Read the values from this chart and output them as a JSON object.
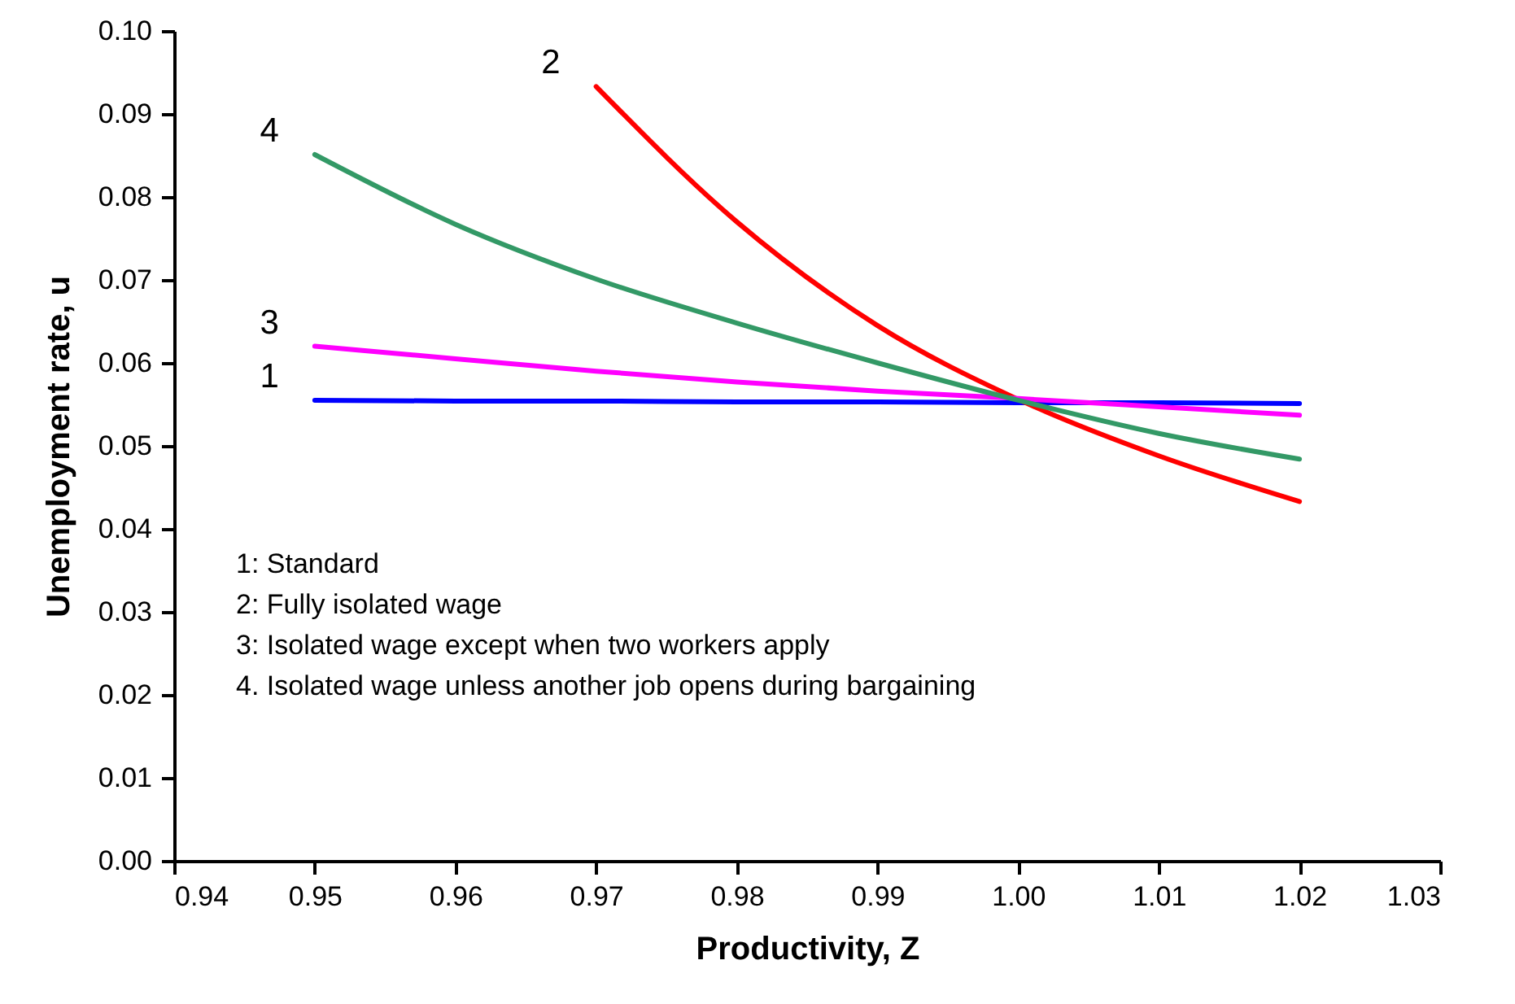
{
  "chart_data": {
    "type": "line",
    "xlabel": "Productivity, Z",
    "ylabel": "Unemployment rate, u",
    "x": [
      0.95,
      0.96,
      0.97,
      0.98,
      0.99,
      1.0,
      1.01,
      1.02
    ],
    "series": [
      {
        "name": "1",
        "color": "#0000ff",
        "values": [
          0.0555,
          0.0554,
          0.0554,
          0.0553,
          0.0553,
          0.0552,
          0.0552,
          0.0551
        ]
      },
      {
        "name": "2",
        "color": "#ff0000",
        "values": [
          null,
          null,
          0.0933,
          0.077,
          0.0645,
          0.0556,
          0.0488,
          0.0433
        ]
      },
      {
        "name": "3",
        "color": "#ff00ff",
        "values": [
          0.062,
          0.0605,
          0.059,
          0.0577,
          0.0566,
          0.0557,
          0.0547,
          0.0537
        ]
      },
      {
        "name": "4",
        "color": "#339966",
        "values": [
          0.0851,
          0.0767,
          0.0701,
          0.0648,
          0.06,
          0.0555,
          0.0515,
          0.0484
        ]
      }
    ],
    "xlim": [
      0.94,
      1.03
    ],
    "xticks": [
      {
        "value": 0.94,
        "label": "0.94"
      },
      {
        "value": 0.95,
        "label": "0.95"
      },
      {
        "value": 0.96,
        "label": "0.96"
      },
      {
        "value": 0.97,
        "label": "0.97"
      },
      {
        "value": 0.98,
        "label": "0.98"
      },
      {
        "value": 0.99,
        "label": "0.99"
      },
      {
        "value": 1.0,
        "label": "1.00"
      },
      {
        "value": 1.01,
        "label": "1.01"
      },
      {
        "value": 1.02,
        "label": "1.02"
      },
      {
        "value": 1.03,
        "label": "1.03"
      }
    ],
    "ylim": [
      0,
      0.1
    ],
    "yticks": [
      {
        "value": 0,
        "label": "0.00"
      },
      {
        "value": 0.01,
        "label": "0.01"
      },
      {
        "value": 0.02,
        "label": "0.02"
      },
      {
        "value": 0.03,
        "label": "0.03"
      },
      {
        "value": 0.04,
        "label": "0.04"
      },
      {
        "value": 0.05,
        "label": "0.05"
      },
      {
        "value": 0.06,
        "label": "0.06"
      },
      {
        "value": 0.07,
        "label": "0.07"
      },
      {
        "value": 0.08,
        "label": "0.08"
      },
      {
        "value": 0.09,
        "label": "0.09"
      },
      {
        "value": 0.1,
        "label": "0.10"
      }
    ],
    "annotations": [
      "1: Standard",
      "2: Fully isolated wage",
      "3: Isolated wage except when two workers apply",
      "4. Isolated wage unless another job opens during bargaining"
    ],
    "grid": false,
    "marker": "none",
    "line_style": "solid"
  }
}
